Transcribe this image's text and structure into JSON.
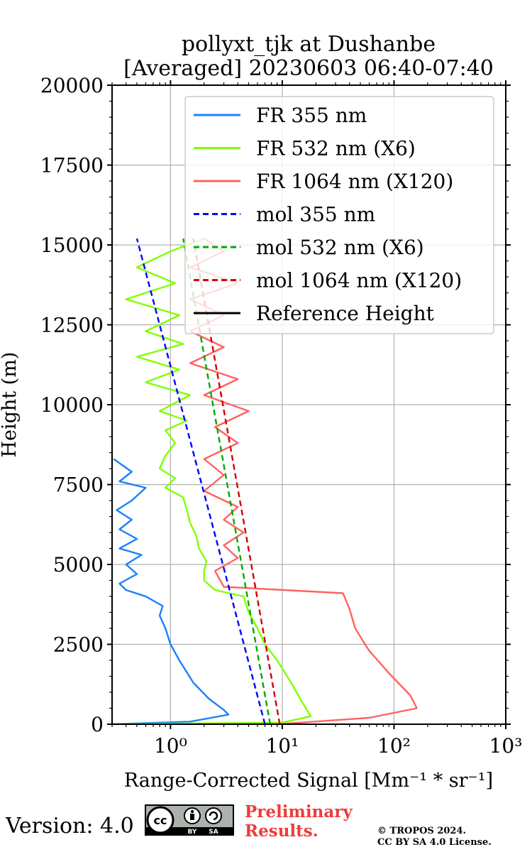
{
  "chart_data": {
    "type": "line",
    "title": "pollyxt_tjk at Dushanbe",
    "subtitle": "[Averaged] 20230603 06:40-07:40",
    "xlabel": "Range-Corrected Signal [Mm⁻¹ * sr⁻¹]",
    "ylabel": "Height (m)",
    "xscale": "log",
    "xlim": [
      0.3,
      1000
    ],
    "ylim": [
      0,
      20000
    ],
    "x_tick_labels": [
      "10⁰",
      "10¹",
      "10²",
      "10³"
    ],
    "x_ticks": [
      1,
      10,
      100,
      1000
    ],
    "y_ticks": [
      0,
      2500,
      5000,
      7500,
      10000,
      12500,
      15000,
      17500,
      20000
    ],
    "y_tick_labels": [
      "0",
      "2500",
      "5000",
      "7500",
      "10000",
      "12500",
      "15000",
      "17500",
      "20000"
    ],
    "grid": true,
    "legend_position": "top-right",
    "series": [
      {
        "name": "FR 355 nm",
        "color": "#1a80ff",
        "style": "solid",
        "points": [
          [
            0.3,
            0
          ],
          [
            1.5,
            80
          ],
          [
            3.3,
            300
          ],
          [
            3.0,
            450
          ],
          [
            2.2,
            800
          ],
          [
            1.6,
            1300
          ],
          [
            1.2,
            2000
          ],
          [
            1.0,
            2500
          ],
          [
            0.9,
            3000
          ],
          [
            0.8,
            3400
          ],
          [
            0.85,
            3700
          ],
          [
            0.6,
            4000
          ],
          [
            0.4,
            4200
          ],
          [
            0.35,
            4400
          ],
          [
            0.5,
            4700
          ],
          [
            0.4,
            5000
          ],
          [
            0.55,
            5300
          ],
          [
            0.35,
            5500
          ],
          [
            0.5,
            5800
          ],
          [
            0.35,
            6100
          ],
          [
            0.45,
            6400
          ],
          [
            0.33,
            6700
          ],
          [
            0.45,
            7000
          ],
          [
            0.6,
            7400
          ],
          [
            0.35,
            7600
          ],
          [
            0.45,
            7900
          ],
          [
            0.31,
            8300
          ]
        ]
      },
      {
        "name": "FR 532 nm (X6)",
        "color": "#80ff00",
        "style": "solid",
        "points": [
          [
            0.3,
            0
          ],
          [
            10,
            50
          ],
          [
            18,
            250
          ],
          [
            15,
            700
          ],
          [
            12,
            1300
          ],
          [
            9,
            2000
          ],
          [
            7,
            2500
          ],
          [
            6,
            3000
          ],
          [
            5,
            3500
          ],
          [
            4.5,
            4000
          ],
          [
            2.5,
            4200
          ],
          [
            2,
            4500
          ],
          [
            2,
            4800
          ],
          [
            2.1,
            5100
          ],
          [
            1.8,
            5500
          ],
          [
            1.7,
            5900
          ],
          [
            1.5,
            6300
          ],
          [
            1.4,
            6700
          ],
          [
            1.3,
            7100
          ],
          [
            0.9,
            7400
          ],
          [
            1.1,
            7700
          ],
          [
            0.8,
            8000
          ],
          [
            0.9,
            8400
          ],
          [
            1.1,
            8800
          ],
          [
            0.9,
            9200
          ],
          [
            1.4,
            9500
          ],
          [
            0.8,
            9800
          ],
          [
            1.5,
            10300
          ],
          [
            0.6,
            10700
          ],
          [
            1.2,
            11100
          ],
          [
            0.5,
            11500
          ],
          [
            1.3,
            11900
          ],
          [
            0.6,
            12300
          ],
          [
            1.2,
            12800
          ],
          [
            0.4,
            13300
          ],
          [
            1.1,
            13800
          ],
          [
            0.5,
            14300
          ],
          [
            1.0,
            14800
          ],
          [
            2.0,
            15200
          ]
        ]
      },
      {
        "name": "FR 1064 nm (X120)",
        "color": "#ff6262",
        "style": "solid",
        "points": [
          [
            9,
            0
          ],
          [
            60,
            200
          ],
          [
            160,
            500
          ],
          [
            140,
            900
          ],
          [
            90,
            1600
          ],
          [
            60,
            2300
          ],
          [
            55,
            2500
          ],
          [
            45,
            3000
          ],
          [
            40,
            3600
          ],
          [
            35,
            4100
          ],
          [
            3,
            4300
          ],
          [
            2.5,
            4800
          ],
          [
            4,
            5200
          ],
          [
            3,
            5600
          ],
          [
            4.5,
            6000
          ],
          [
            3,
            6400
          ],
          [
            4,
            6800
          ],
          [
            2,
            7300
          ],
          [
            3,
            7800
          ],
          [
            2,
            8300
          ],
          [
            4,
            8800
          ],
          [
            2.5,
            9300
          ],
          [
            5,
            9800
          ],
          [
            2,
            10300
          ],
          [
            4,
            10800
          ],
          [
            1.5,
            11300
          ],
          [
            3,
            11800
          ],
          [
            1.5,
            12300
          ],
          [
            3,
            12800
          ],
          [
            1.5,
            13300
          ],
          [
            4,
            13800
          ],
          [
            1.5,
            14300
          ],
          [
            3,
            14800
          ],
          [
            2,
            15200
          ]
        ]
      },
      {
        "name": "mol 355 nm",
        "color": "#0000ff",
        "style": "dashed",
        "points": [
          [
            7.0,
            0
          ],
          [
            0.5,
            15200
          ]
        ]
      },
      {
        "name": "mol 532 nm (X6)",
        "color": "#00aa00",
        "style": "dashed",
        "points": [
          [
            7.8,
            0
          ],
          [
            1.3,
            15200
          ]
        ]
      },
      {
        "name": "mol 1064 nm (X120)",
        "color": "#d40000",
        "style": "dashed",
        "points": [
          [
            9.5,
            0
          ],
          [
            1.6,
            15200
          ]
        ]
      },
      {
        "name": "Reference Height",
        "color": "#000000",
        "style": "solid",
        "points": []
      }
    ]
  },
  "footer": {
    "version": "Version: 4.0",
    "cc_main": "cc",
    "cc_by": "BY",
    "cc_sa": "SA",
    "preliminary_line1": "Preliminary",
    "preliminary_line2": "Results.",
    "copyright_line1": "© TROPOS 2024.",
    "copyright_line2": "CC BY SA 4.0 License."
  }
}
